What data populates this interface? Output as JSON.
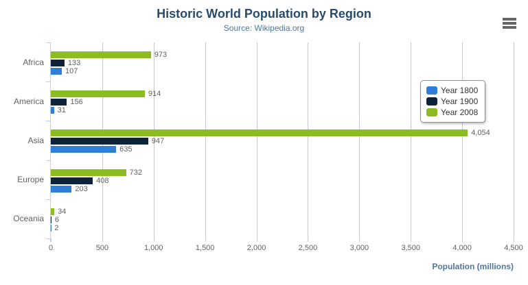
{
  "header": {
    "title": "Historic World Population by Region",
    "subtitle": "Source: Wikipedia.org"
  },
  "export_menu": {
    "icon": "hamburger-menu-icon"
  },
  "x_axis": {
    "title": "Population (millions)"
  },
  "chart_data": {
    "type": "bar",
    "orientation": "horizontal",
    "title": "Historic World Population by Region",
    "subtitle": "Source: Wikipedia.org",
    "categories": [
      "Africa",
      "America",
      "Asia",
      "Europe",
      "Oceania"
    ],
    "series": [
      {
        "name": "Year 1800",
        "color": "#2f7ed8",
        "values": [
          107,
          31,
          635,
          203,
          2
        ]
      },
      {
        "name": "Year 1900",
        "color": "#0d233a",
        "values": [
          133,
          156,
          947,
          408,
          6
        ]
      },
      {
        "name": "Year 2008",
        "color": "#8bbc21",
        "values": [
          973,
          914,
          4054,
          732,
          34
        ]
      }
    ],
    "bar_display_order_top_to_bottom": [
      "Year 2008",
      "Year 1900",
      "Year 1800"
    ],
    "data_labels": true,
    "xlabel": "Population (millions)",
    "ylabel": "",
    "xlim": [
      0,
      4500
    ],
    "xtick_step": 500,
    "xtick_labels": [
      "0",
      "500",
      "1,000",
      "1,500",
      "2,000",
      "2,500",
      "3,000",
      "3,500",
      "4,000",
      "4,500"
    ],
    "grid": true,
    "legend_position": "right-floating"
  },
  "colors": {
    "title": "#274b6d",
    "subtitle": "#4d759e",
    "axis_title": "#4d759e",
    "tick_label": "#606060",
    "category_label": "#606060",
    "data_label": "#606060",
    "gridline": "#c8c8c8",
    "axis_line": "#c0d0e0",
    "legend_border": "#909090",
    "legend_text": "#333333",
    "export_icon": "#666666"
  }
}
